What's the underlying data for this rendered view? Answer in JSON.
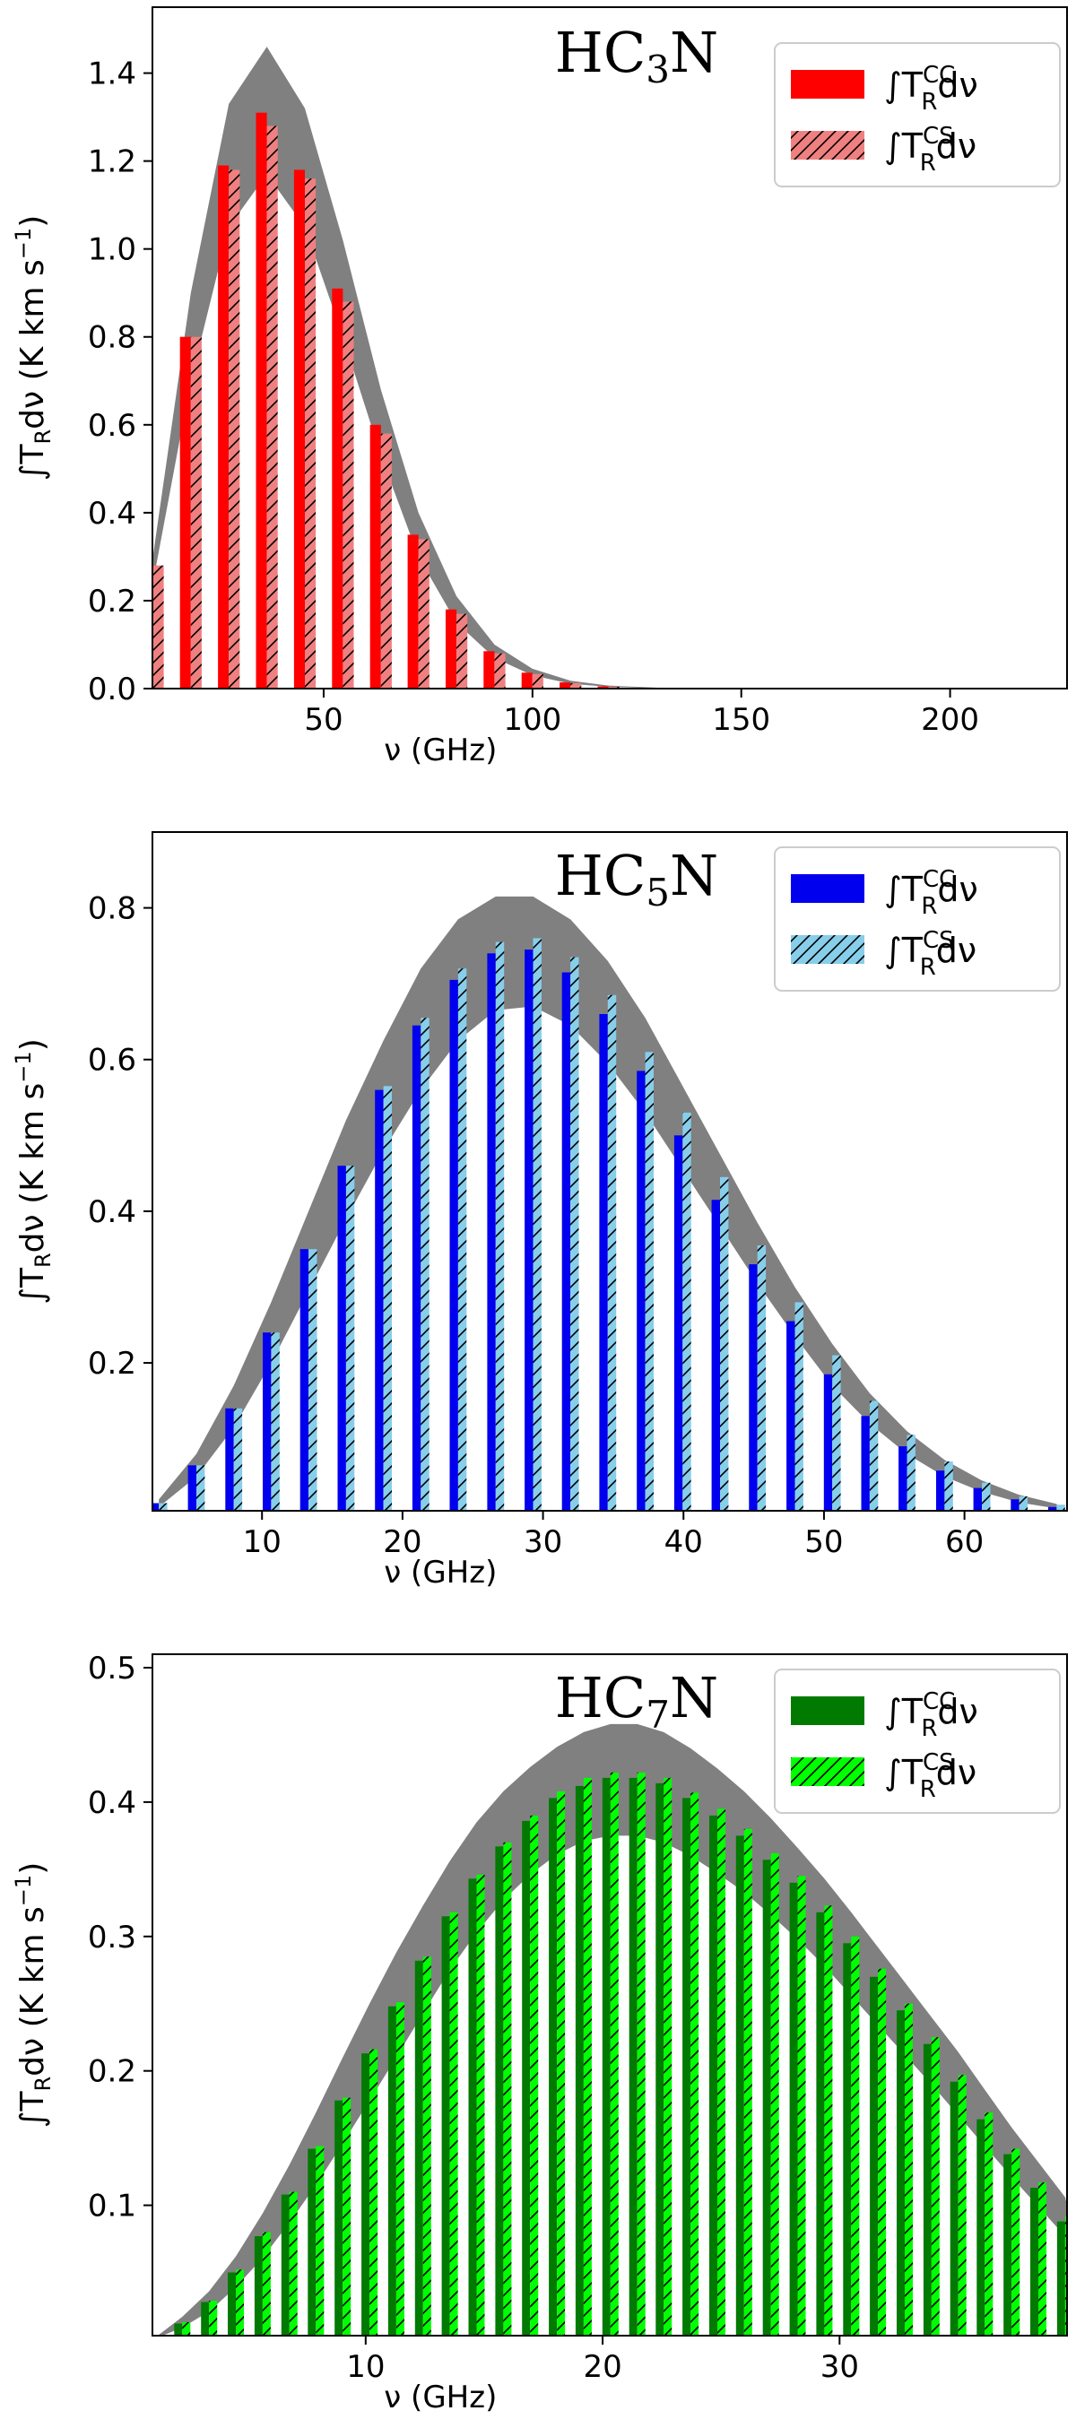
{
  "chart_data": [
    {
      "type": "bar",
      "molecule": {
        "prefix": "HC",
        "sub": "3",
        "suffix": "N"
      },
      "xlabel": "ν (GHz)",
      "ylabel": {
        "pre": "∫T",
        "sub": "R",
        "post": "dν (K km s",
        "sup": "−1",
        "end": ")"
      },
      "xlim": [
        9,
        228
      ],
      "ylim": [
        0,
        1.55
      ],
      "xticks": [
        50,
        100,
        150,
        200
      ],
      "xtick_labels": [
        "50",
        "100",
        "150",
        "200"
      ],
      "yticks": [
        0.0,
        0.2,
        0.4,
        0.6,
        0.8,
        1.0,
        1.2,
        1.4
      ],
      "ytick_labels": [
        "0.0",
        "0.2",
        "0.4",
        "0.6",
        "0.8",
        "1.0",
        "1.2",
        "1.4"
      ],
      "bar_width": 2.6,
      "colors": {
        "cc": "#ff0000",
        "cs": "#f08080",
        "band": "#808080"
      },
      "legend": {
        "cc": {
          "pre": "∫T",
          "sub": "R",
          "sup": "CC",
          "post": "dν"
        },
        "cs": {
          "pre": "∫T",
          "sub": "R",
          "sup": "CS",
          "post": "dν"
        },
        "position": "top-right"
      },
      "x": [
        9.1,
        18.2,
        27.3,
        36.4,
        45.5,
        54.6,
        63.7,
        72.7,
        81.8,
        90.9,
        100.0,
        109.1,
        118.2
      ],
      "series": [
        {
          "name": "CC",
          "values": [
            0.28,
            0.8,
            1.19,
            1.31,
            1.18,
            0.91,
            0.6,
            0.35,
            0.18,
            0.085,
            0.036,
            0.014,
            0.005
          ]
        },
        {
          "name": "CS",
          "values": [
            0.28,
            0.8,
            1.18,
            1.28,
            1.16,
            0.88,
            0.58,
            0.34,
            0.17,
            0.08,
            0.033,
            0.012,
            0.004
          ]
        }
      ],
      "band": {
        "x": [
          9.1,
          18.2,
          27.3,
          36.4,
          45.5,
          54.6,
          63.7,
          72.7,
          81.8,
          90.9,
          100.0,
          109.1,
          118.2,
          130,
          140
        ],
        "upper": [
          0.3,
          0.9,
          1.33,
          1.46,
          1.32,
          1.02,
          0.68,
          0.4,
          0.21,
          0.1,
          0.045,
          0.018,
          0.007,
          0.002,
          0.0
        ],
        "lower": [
          0.24,
          0.7,
          1.05,
          1.17,
          1.05,
          0.8,
          0.53,
          0.3,
          0.15,
          0.07,
          0.03,
          0.011,
          0.004,
          0.001,
          0.0
        ]
      }
    },
    {
      "type": "bar",
      "molecule": {
        "prefix": "HC",
        "sub": "5",
        "suffix": "N"
      },
      "xlabel": "ν (GHz)",
      "ylabel": {
        "pre": "∫T",
        "sub": "R",
        "post": "dν (K km s",
        "sup": "−1",
        "end": ")"
      },
      "xlim": [
        2.2,
        67.3
      ],
      "ylim": [
        0.005,
        0.9
      ],
      "xticks": [
        10,
        20,
        30,
        40,
        50,
        60
      ],
      "xtick_labels": [
        "10",
        "20",
        "30",
        "40",
        "50",
        "60"
      ],
      "yticks": [
        0.2,
        0.4,
        0.6,
        0.8
      ],
      "ytick_labels": [
        "0.2",
        "0.4",
        "0.6",
        "0.8"
      ],
      "bar_width": 0.6,
      "colors": {
        "cc": "#0000ee",
        "cs": "#87ceeb",
        "band": "#808080"
      },
      "legend": {
        "cc": {
          "pre": "∫T",
          "sub": "R",
          "sup": "CC",
          "post": "dν"
        },
        "cs": {
          "pre": "∫T",
          "sub": "R",
          "sup": "CS",
          "post": "dν"
        },
        "position": "top-right"
      },
      "x": [
        2.66,
        5.33,
        7.99,
        10.65,
        13.31,
        15.98,
        18.64,
        21.3,
        23.96,
        26.63,
        29.29,
        31.95,
        34.61,
        37.28,
        39.94,
        42.6,
        45.26,
        47.93,
        50.59,
        53.25,
        55.91,
        58.58,
        61.24,
        63.9,
        66.56
      ],
      "series": [
        {
          "name": "CC",
          "values": [
            0.015,
            0.065,
            0.14,
            0.24,
            0.35,
            0.46,
            0.56,
            0.645,
            0.705,
            0.74,
            0.745,
            0.715,
            0.66,
            0.585,
            0.5,
            0.415,
            0.33,
            0.255,
            0.185,
            0.13,
            0.09,
            0.058,
            0.035,
            0.02,
            0.01
          ]
        },
        {
          "name": "CS",
          "values": [
            0.015,
            0.065,
            0.14,
            0.24,
            0.35,
            0.46,
            0.565,
            0.655,
            0.72,
            0.755,
            0.76,
            0.735,
            0.685,
            0.61,
            0.53,
            0.445,
            0.355,
            0.28,
            0.21,
            0.15,
            0.105,
            0.07,
            0.042,
            0.024,
            0.013
          ]
        }
      ],
      "band": {
        "x": [
          2.66,
          5.33,
          7.99,
          10.65,
          13.31,
          15.98,
          18.64,
          21.3,
          23.96,
          26.63,
          29.29,
          31.95,
          34.61,
          37.28,
          39.94,
          42.6,
          45.26,
          47.93,
          50.59,
          53.25,
          55.91,
          58.58,
          61.24,
          63.9,
          66.56
        ],
        "upper": [
          0.02,
          0.08,
          0.17,
          0.28,
          0.4,
          0.52,
          0.625,
          0.72,
          0.785,
          0.815,
          0.815,
          0.785,
          0.73,
          0.655,
          0.565,
          0.475,
          0.385,
          0.3,
          0.225,
          0.16,
          0.11,
          0.072,
          0.045,
          0.026,
          0.014
        ],
        "lower": [
          0.01,
          0.05,
          0.115,
          0.2,
          0.295,
          0.39,
          0.48,
          0.56,
          0.625,
          0.665,
          0.67,
          0.645,
          0.595,
          0.53,
          0.455,
          0.38,
          0.305,
          0.235,
          0.17,
          0.12,
          0.08,
          0.05,
          0.03,
          0.016,
          0.008
        ]
      }
    },
    {
      "type": "bar",
      "molecule": {
        "prefix": "HC",
        "sub": "7",
        "suffix": "N"
      },
      "xlabel": "ν (GHz)",
      "ylabel": {
        "pre": "∫T",
        "sub": "R",
        "post": "dν (K km s",
        "sup": "−1",
        "end": ")"
      },
      "xlim": [
        1.0,
        39.6
      ],
      "ylim": [
        0.003,
        0.51
      ],
      "xticks": [
        10,
        20,
        30
      ],
      "xtick_labels": [
        "10",
        "20",
        "30"
      ],
      "yticks": [
        0.1,
        0.2,
        0.3,
        0.4,
        0.5
      ],
      "ytick_labels": [
        "0.1",
        "0.2",
        "0.3",
        "0.4",
        "0.5"
      ],
      "bar_width": 0.34,
      "colors": {
        "cc": "#007a00",
        "cs": "#00ff00",
        "band": "#808080"
      },
      "legend": {
        "cc": {
          "pre": "∫T",
          "sub": "R",
          "sup": "CC",
          "post": "dν"
        },
        "cs": {
          "pre": "∫T",
          "sub": "R",
          "sup": "CS",
          "post": "dν"
        },
        "position": "top-right"
      },
      "x": [
        2.26,
        3.39,
        4.52,
        5.65,
        6.78,
        7.9,
        9.03,
        10.16,
        11.29,
        12.42,
        13.55,
        14.68,
        15.81,
        16.94,
        18.07,
        19.2,
        20.33,
        21.46,
        22.58,
        23.71,
        24.84,
        25.97,
        27.1,
        28.23,
        29.36,
        30.49,
        31.62,
        32.75,
        33.88,
        35.01,
        36.13,
        37.26,
        38.39,
        39.52
      ],
      "series": [
        {
          "name": "CC",
          "values": [
            0.012,
            0.028,
            0.05,
            0.077,
            0.108,
            0.142,
            0.178,
            0.213,
            0.248,
            0.282,
            0.315,
            0.343,
            0.367,
            0.386,
            0.403,
            0.412,
            0.418,
            0.418,
            0.414,
            0.403,
            0.39,
            0.375,
            0.357,
            0.34,
            0.318,
            0.295,
            0.27,
            0.245,
            0.22,
            0.192,
            0.164,
            0.138,
            0.113,
            0.088
          ]
        },
        {
          "name": "CS",
          "values": [
            0.013,
            0.029,
            0.052,
            0.08,
            0.11,
            0.144,
            0.18,
            0.216,
            0.251,
            0.285,
            0.318,
            0.346,
            0.37,
            0.39,
            0.408,
            0.418,
            0.422,
            0.422,
            0.418,
            0.407,
            0.395,
            0.38,
            0.362,
            0.345,
            0.323,
            0.3,
            0.276,
            0.25,
            0.225,
            0.197,
            0.169,
            0.142,
            0.117,
            0.092
          ]
        }
      ],
      "band": {
        "x": [
          1.0,
          2.26,
          3.39,
          4.52,
          5.65,
          6.78,
          7.9,
          9.03,
          10.16,
          11.29,
          12.42,
          13.55,
          14.68,
          15.81,
          16.94,
          18.07,
          19.2,
          20.33,
          21.46,
          22.58,
          23.71,
          24.84,
          25.97,
          27.1,
          28.23,
          29.36,
          30.49,
          31.62,
          32.75,
          33.88,
          35.01,
          36.13,
          37.26,
          38.39,
          39.52,
          39.6
        ],
        "upper": [
          0.0,
          0.017,
          0.036,
          0.062,
          0.094,
          0.13,
          0.169,
          0.21,
          0.25,
          0.288,
          0.323,
          0.356,
          0.385,
          0.408,
          0.426,
          0.441,
          0.452,
          0.458,
          0.458,
          0.452,
          0.44,
          0.425,
          0.408,
          0.388,
          0.366,
          0.343,
          0.318,
          0.292,
          0.266,
          0.24,
          0.214,
          0.186,
          0.158,
          0.132,
          0.106,
          0.1
        ],
        "lower": [
          0.0,
          0.009,
          0.021,
          0.039,
          0.061,
          0.087,
          0.115,
          0.146,
          0.178,
          0.21,
          0.243,
          0.275,
          0.303,
          0.327,
          0.346,
          0.361,
          0.371,
          0.375,
          0.375,
          0.37,
          0.36,
          0.347,
          0.333,
          0.316,
          0.298,
          0.278,
          0.256,
          0.234,
          0.212,
          0.19,
          0.167,
          0.144,
          0.121,
          0.099,
          0.077,
          0.075
        ]
      }
    }
  ]
}
